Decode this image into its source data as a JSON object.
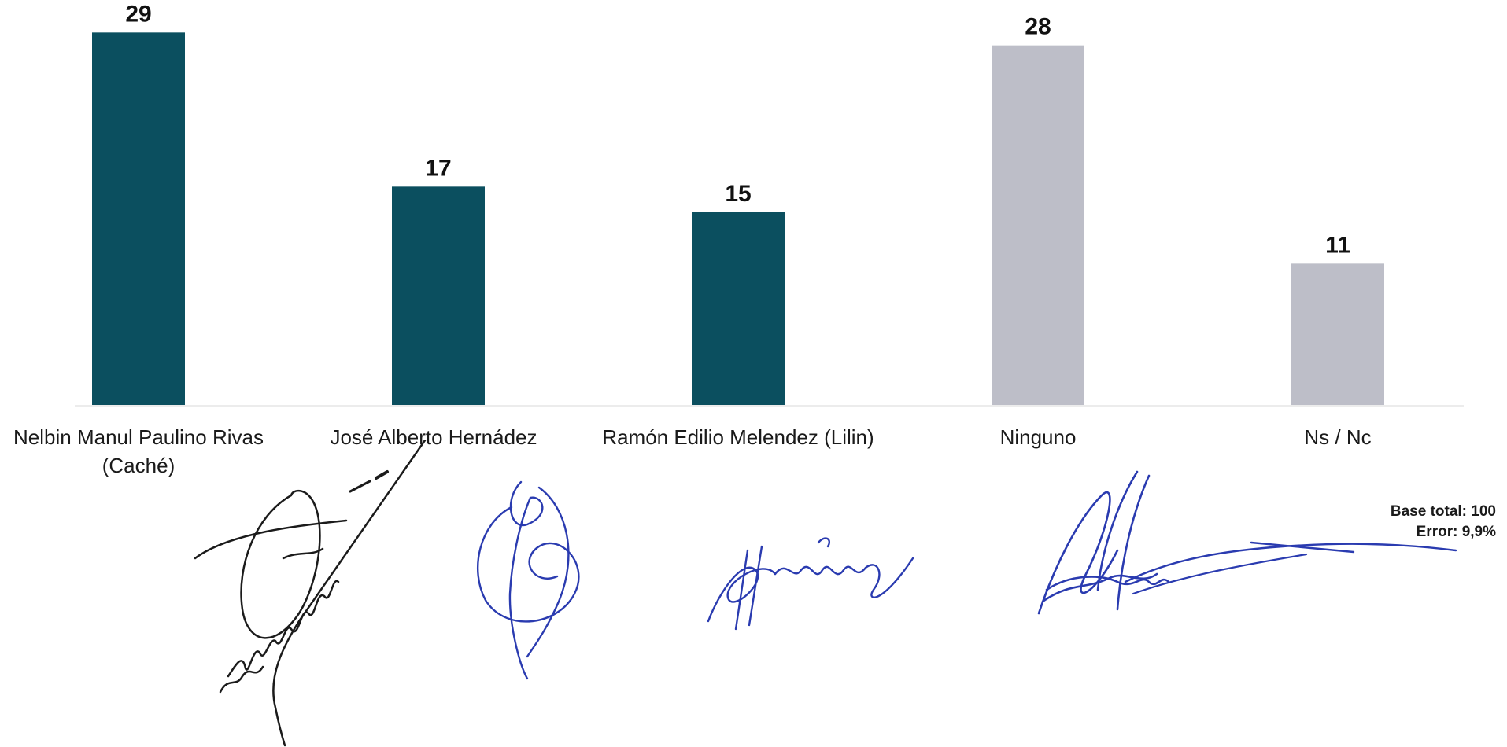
{
  "chart_data": {
    "type": "bar",
    "categories": [
      "Nelbin Manul Paulino Rivas (Caché)",
      "José Alberto Hernádez",
      "Ramón Edilio Melendez (Lilin)",
      "Ninguno",
      "Ns / Nc"
    ],
    "values": [
      29,
      17,
      15,
      28,
      11
    ],
    "bar_colors": [
      "#0b4f5f",
      "#0b4f5f",
      "#0b4f5f",
      "#bdbec8",
      "#bdbec8"
    ],
    "data_labels": [
      "29",
      "17",
      "15",
      "28",
      "11"
    ],
    "ylim": [
      0,
      30
    ],
    "grid": false,
    "legend": "none"
  },
  "footnote": {
    "base": "Base total: 100",
    "error": "Error: 9,9%"
  },
  "colors": {
    "ink_black": "#1b1b1b",
    "ink_blue": "#2a3bb0"
  }
}
